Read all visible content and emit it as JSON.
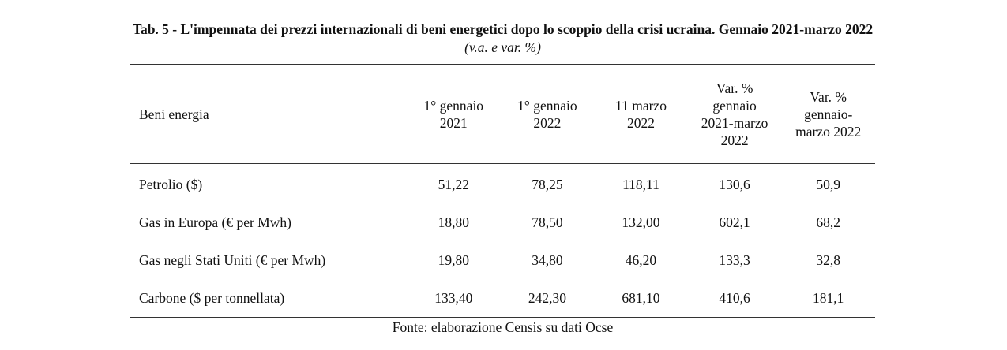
{
  "title": {
    "bold": "Tab. 5 - L'impennata dei prezzi internazionali di beni energetici dopo lo scoppio della crisi ucraina. Gennaio 2021-marzo 2022",
    "italic": "(v.a. e var. %)"
  },
  "table": {
    "header": [
      [
        "Beni energia"
      ],
      [
        "1° gennaio",
        "2021"
      ],
      [
        "1° gennaio",
        "2022"
      ],
      [
        "11 marzo",
        "2022"
      ],
      [
        "Var. %",
        "gennaio",
        "2021-marzo",
        "2022"
      ],
      [
        "Var. %",
        "gennaio-",
        "marzo 2022"
      ]
    ],
    "rows": [
      [
        "Petrolio ($)",
        "51,22",
        "78,25",
        "118,11",
        "130,6",
        "50,9"
      ],
      [
        "Gas in Europa (€ per Mwh)",
        "18,80",
        "78,50",
        "132,00",
        "602,1",
        "68,2"
      ],
      [
        "Gas negli Stati Uniti (€ per Mwh)",
        "19,80",
        "34,80",
        "46,20",
        "133,3",
        "32,8"
      ],
      [
        "Carbone ($ per tonnellata)",
        "133,40",
        "242,30",
        "681,10",
        "410,6",
        "181,1"
      ]
    ]
  },
  "source": "Fonte: elaborazione Censis su dati Ocse"
}
